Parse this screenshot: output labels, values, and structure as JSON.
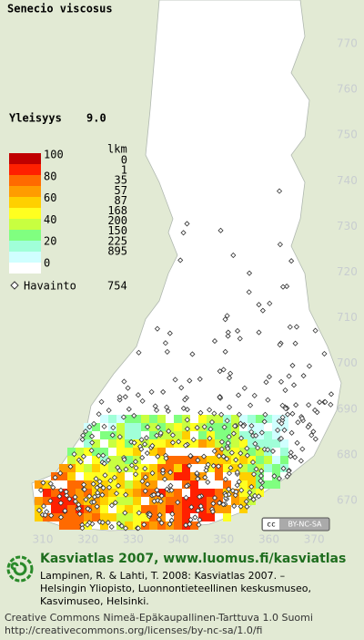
{
  "title": "Senecio viscosus",
  "frequency": {
    "label": "Yleisyys",
    "value": "9.0"
  },
  "legend": {
    "count_header": "lkm",
    "scale_labels": [
      100,
      80,
      60,
      40,
      20,
      0
    ],
    "counts": [
      0,
      1,
      35,
      57,
      87,
      168,
      200,
      150,
      225,
      895
    ],
    "colors": [
      "#c00000",
      "#ff2000",
      "#ff6a00",
      "#ff9c00",
      "#ffd000",
      "#ffff20",
      "#c8ff40",
      "#80ff80",
      "#a0ffd8",
      "#d0ffff",
      "#ffffff"
    ]
  },
  "observations": {
    "label": "Havainto",
    "count": 754
  },
  "grid": {
    "northing": [
      770,
      760,
      750,
      740,
      730,
      720,
      710,
      700,
      690,
      680,
      670
    ],
    "easting": [
      310,
      320,
      330,
      340,
      350,
      360,
      370
    ]
  },
  "badge": "BY-NC-SA",
  "footer": {
    "heading": "Kasviatlas 2007, www.luomus.fi/kasviatlas",
    "citation": [
      "Lampinen, R. & Lahti, T. 2008: Kasviatlas 2007. –",
      "Helsingin Yliopisto, Luonnontieteellinen keskusmuseo,",
      "Kasvimuseo, Helsinki."
    ],
    "license": [
      "Creative Commons Nimeä-Epäkaupallinen-Tarttuva 1.0 Suomi",
      "http://creativecommons.org/licenses/by-nc-sa/1.0/fi"
    ]
  }
}
